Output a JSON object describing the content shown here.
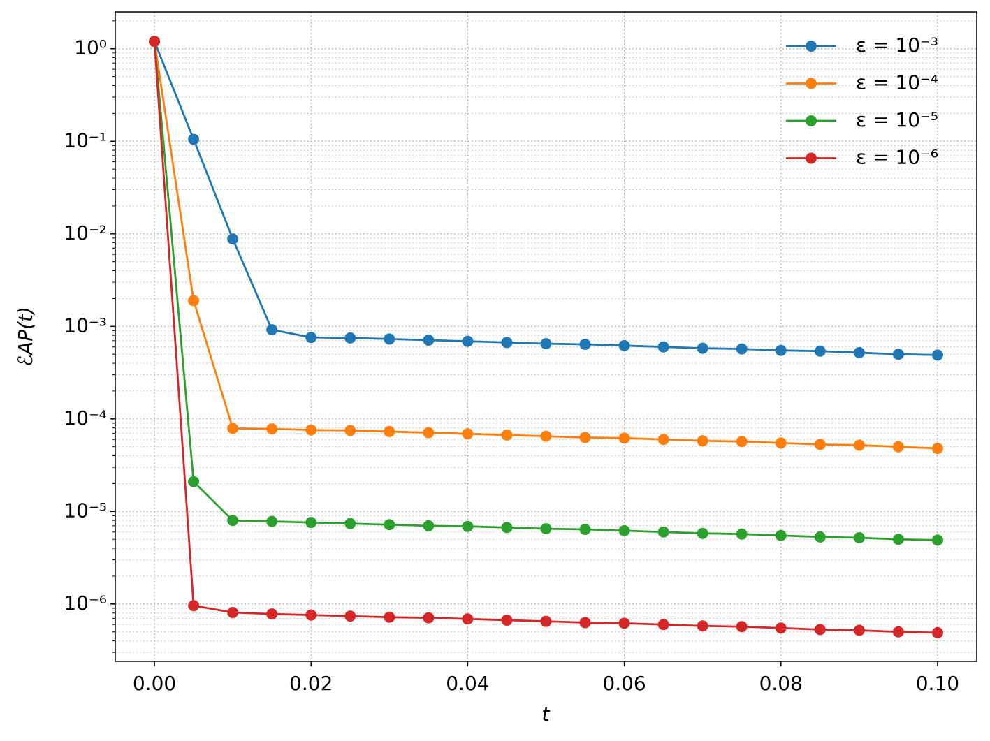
{
  "chart_data": {
    "type": "line",
    "x_label": "t",
    "y_label": "ℰAP(t)",
    "x": [
      0,
      0.005,
      0.01,
      0.015,
      0.02,
      0.025,
      0.03,
      0.035,
      0.04,
      0.045,
      0.05,
      0.055,
      0.06,
      0.065,
      0.07,
      0.075,
      0.08,
      0.085,
      0.09,
      0.095,
      0.1
    ],
    "series": [
      {
        "name": "ε = 10⁻³",
        "color": "#1f77b4",
        "values": [
          1.2,
          0.105,
          0.0088,
          0.00092,
          0.00076,
          0.00075,
          0.00073,
          0.00071,
          0.00069,
          0.00067,
          0.00065,
          0.00064,
          0.00062,
          0.0006,
          0.00058,
          0.00057,
          0.00055,
          0.00054,
          0.00052,
          0.0005,
          0.00049
        ]
      },
      {
        "name": "ε = 10⁻⁴",
        "color": "#ff7f0e",
        "values": [
          1.2,
          0.0019,
          7.9e-05,
          7.8e-05,
          7.6e-05,
          7.5e-05,
          7.3e-05,
          7.1e-05,
          6.9e-05,
          6.7e-05,
          6.5e-05,
          6.3e-05,
          6.2e-05,
          6e-05,
          5.8e-05,
          5.7e-05,
          5.5e-05,
          5.3e-05,
          5.2e-05,
          5e-05,
          4.8e-05
        ]
      },
      {
        "name": "ε = 10⁻⁵",
        "color": "#2ca02c",
        "values": [
          1.2,
          2.1e-05,
          8e-06,
          7.8e-06,
          7.6e-06,
          7.4e-06,
          7.2e-06,
          7e-06,
          6.9e-06,
          6.7e-06,
          6.5e-06,
          6.4e-06,
          6.2e-06,
          6e-06,
          5.8e-06,
          5.7e-06,
          5.5e-06,
          5.3e-06,
          5.2e-06,
          5e-06,
          4.9e-06
        ]
      },
      {
        "name": "ε = 10⁻⁶",
        "color": "#d62728",
        "values": [
          1.2,
          9.6e-07,
          8.1e-07,
          7.8e-07,
          7.6e-07,
          7.4e-07,
          7.2e-07,
          7.1e-07,
          6.9e-07,
          6.7e-07,
          6.5e-07,
          6.3e-07,
          6.2e-07,
          6e-07,
          5.8e-07,
          5.7e-07,
          5.5e-07,
          5.3e-07,
          5.2e-07,
          5e-07,
          4.9e-07
        ]
      }
    ],
    "xlim": [
      -0.005,
      0.105
    ],
    "ylim": [
      2.4e-07,
      2.5
    ],
    "xticks": [
      {
        "value": 0,
        "label": "0.00"
      },
      0.02,
      0.04,
      0.06,
      0.08,
      {
        "value": 0.1,
        "label": "0.10"
      }
    ],
    "yticks": [
      {
        "value": 1e-06,
        "label": "10⁻⁶"
      },
      {
        "value": 1e-05,
        "label": "10⁻⁵"
      },
      {
        "value": 0.0001,
        "label": "10⁻⁴"
      },
      {
        "value": 0.001,
        "label": "10⁻³"
      },
      {
        "value": 0.01,
        "label": "10⁻²"
      },
      {
        "value": 0.1,
        "label": "10⁻¹"
      },
      {
        "value": 1,
        "label": "10⁰"
      }
    ],
    "y_log": true,
    "grid": true,
    "minor_grid": true,
    "legend": "upper right"
  }
}
